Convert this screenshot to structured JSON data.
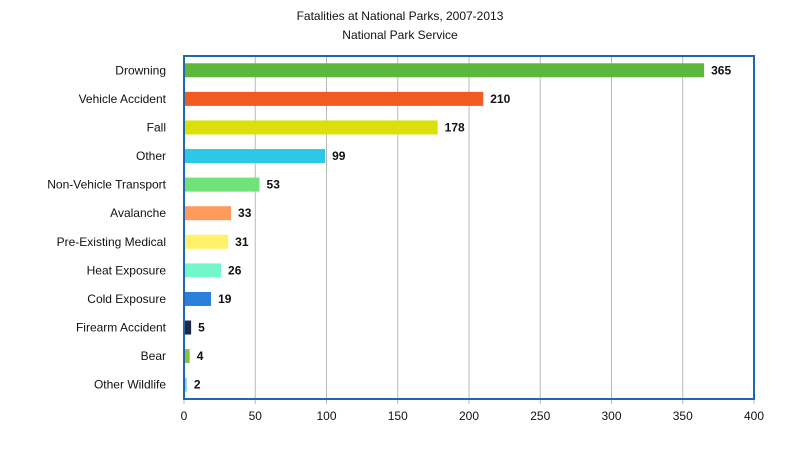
{
  "chart_data": {
    "type": "bar",
    "orientation": "horizontal",
    "title": "Fatalities at National Parks, 2007-2013",
    "subtitle": "National Park Service",
    "categories": [
      "Drowning",
      "Vehicle Accident",
      "Fall",
      "Other",
      "Non-Vehicle Transport",
      "Avalanche",
      "Pre-Existing Medical",
      "Heat Exposure",
      "Cold Exposure",
      "Firearm Accident",
      "Bear",
      "Other Wildlife"
    ],
    "values": [
      365,
      210,
      178,
      99,
      53,
      33,
      31,
      26,
      19,
      5,
      4,
      2
    ],
    "colors": [
      "#5cb73a",
      "#f25a22",
      "#dce00a",
      "#2dc8e6",
      "#6fe27a",
      "#ff9a5c",
      "#fff26a",
      "#72f7c9",
      "#2d7fdc",
      "#1a2b47",
      "#88c43a",
      "#7fd3f0"
    ],
    "xlim": [
      0,
      400
    ],
    "xticks": [
      "0",
      "50",
      "100",
      "150",
      "200",
      "250",
      "300",
      "350",
      "400"
    ],
    "data_labels": true,
    "grid": "vertical",
    "legend": "none",
    "frame_color": "#1f66b0"
  }
}
